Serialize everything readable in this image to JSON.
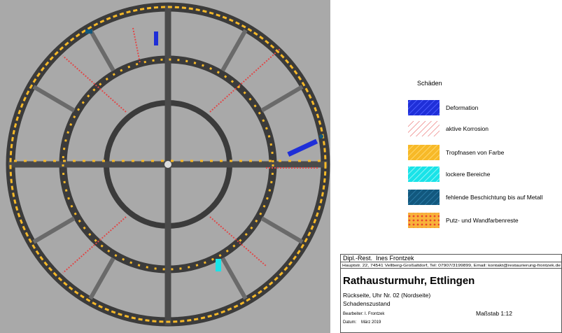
{
  "legend": {
    "title": "Schäden",
    "items": [
      "Deformation",
      "aktive Korrosion",
      "Tropfnasen von Farbe",
      "lockere Bereiche",
      "fehlende Beschichtung bis auf Metall",
      "Putz- und Wandfarbenreste"
    ]
  },
  "title_block": {
    "author": "Dipl.-Rest.  Ines Frontzek",
    "address": "Hauptstr. 22, 74541 Vellberg-Großaltdorf, Tel: 07907/3199899, Email: kontakt@restaurierung-frontzek.de",
    "title": "Rathausturmuhr, Ettlingen",
    "subtitle": "Rückseite, Uhr Nr. 02 (Nordseite)",
    "state": "Schadenszustand",
    "editor": "Bearbeiter: I. Frontzek",
    "date": "Datum:    März 2019",
    "scale": "Maßstab 1:12"
  }
}
